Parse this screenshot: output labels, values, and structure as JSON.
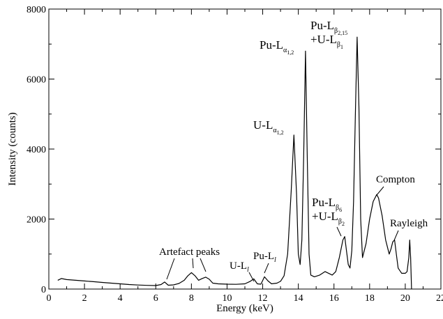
{
  "chart_data": {
    "type": "line",
    "xlabel": "Energy (keV)",
    "ylabel": "Intensity (counts)",
    "xlim": [
      0,
      22
    ],
    "ylim": [
      0,
      8000
    ],
    "x_ticks": [
      0,
      2,
      4,
      6,
      8,
      10,
      12,
      14,
      16,
      18,
      20,
      22
    ],
    "y_ticks": [
      0,
      2000,
      4000,
      6000,
      8000
    ],
    "x_tick_labels": [
      "0",
      "2",
      "4",
      "6",
      "8",
      "10",
      "12",
      "14",
      "16",
      "18",
      "20",
      "22"
    ],
    "y_tick_labels": [
      "0",
      "2000",
      "4000",
      "6000",
      "8000"
    ],
    "grid": false,
    "legend": "none",
    "line_color": "#000000",
    "series": [
      {
        "x": [
          0.5,
          0.7,
          1.0,
          1.5,
          2.0,
          2.5,
          3.0,
          3.5,
          4.0,
          4.5,
          5.0,
          5.5,
          6.0,
          6.3,
          6.5,
          6.7,
          7.0,
          7.3,
          7.6,
          7.8,
          8.0,
          8.2,
          8.4,
          8.6,
          8.8,
          9.0,
          9.2,
          9.5,
          10.0,
          10.5,
          11.0,
          11.3,
          11.5,
          11.7,
          11.9,
          12.1,
          12.3,
          12.5,
          12.8,
          13.0,
          13.2,
          13.4,
          13.6,
          13.75,
          13.9,
          14.0,
          14.1,
          14.2,
          14.3,
          14.4,
          14.5,
          14.6,
          14.7,
          14.9,
          15.2,
          15.5,
          15.7,
          15.9,
          16.1,
          16.3,
          16.5,
          16.6,
          16.7,
          16.8,
          16.9,
          17.0,
          17.1,
          17.2,
          17.3,
          17.4,
          17.5,
          17.6,
          17.8,
          18.0,
          18.2,
          18.4,
          18.5,
          18.7,
          18.9,
          19.1,
          19.2,
          19.3,
          19.4,
          19.5,
          19.6,
          19.8,
          20.0,
          20.1,
          20.2,
          20.25,
          20.3,
          20.35
        ],
        "y": [
          250,
          300,
          270,
          250,
          230,
          210,
          190,
          170,
          150,
          130,
          115,
          105,
          100,
          130,
          200,
          110,
          120,
          160,
          250,
          380,
          470,
          380,
          250,
          300,
          340,
          280,
          170,
          150,
          140,
          135,
          150,
          220,
          290,
          150,
          140,
          350,
          230,
          150,
          170,
          220,
          380,
          1000,
          2800,
          4400,
          2700,
          1000,
          700,
          1400,
          3800,
          6800,
          3800,
          1000,
          400,
          350,
          400,
          500,
          450,
          400,
          500,
          900,
          1400,
          1500,
          1100,
          700,
          600,
          1100,
          2500,
          5000,
          7200,
          5200,
          2000,
          900,
          1300,
          2000,
          2500,
          2700,
          2600,
          2100,
          1400,
          1000,
          1150,
          1350,
          1400,
          1000,
          600,
          450,
          450,
          500,
          900,
          1400,
          900,
          0
        ]
      }
    ],
    "annotations": [
      {
        "text": "Artefact peaks",
        "arrow_to_x": [
          6.5,
          8.0,
          8.8
        ]
      },
      {
        "text": "U-L",
        "sub": "l",
        "arrow_to_x": [
          11.6
        ]
      },
      {
        "text": "Pu-L",
        "sub": "l",
        "arrow_to_x": [
          12.1
        ]
      },
      {
        "text": "U-L",
        "sub": "α",
        "subsub": "1,2",
        "at_x": 13.75
      },
      {
        "text": "Pu-L",
        "sub": "α",
        "subsub": "1,2",
        "at_x": 14.4
      },
      {
        "text": "Pu-L",
        "sub": "β",
        "subsub": "2,15",
        "text2": "+U-L",
        "sub2": "β",
        "subsub2": "1",
        "at_x": 17.3
      },
      {
        "text": "Pu-L",
        "sub": "β",
        "subsub": "6",
        "text2": "+U-L",
        "sub2": "β",
        "subsub2": "2",
        "arrow_to_x": [
          16.5
        ]
      },
      {
        "text": "Compton",
        "arrow_to_x": [
          18.5
        ]
      },
      {
        "text": "Rayleigh",
        "arrow_to_x": [
          19.3
        ]
      }
    ]
  }
}
